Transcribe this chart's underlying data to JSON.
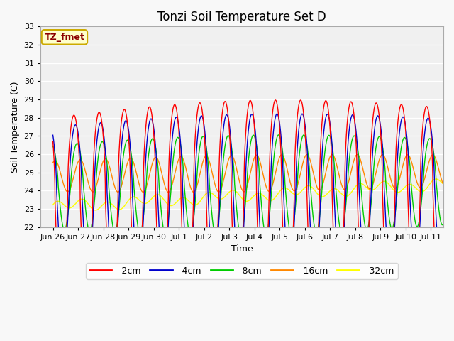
{
  "title": "Tonzi Soil Temperature Set D",
  "xlabel": "Time",
  "ylabel": "Soil Temperature (C)",
  "ylim": [
    22.0,
    33.0
  ],
  "yticks": [
    22.0,
    23.0,
    24.0,
    25.0,
    26.0,
    27.0,
    28.0,
    29.0,
    30.0,
    31.0,
    32.0,
    33.0
  ],
  "annotation": "TZ_fmet",
  "bg_color": "#e8e8e8",
  "plot_bg_color": "#f0f0f0",
  "line_colors": {
    "-2cm": "#ff0000",
    "-4cm": "#0000cc",
    "-8cm": "#00cc00",
    "-16cm": "#ff8800",
    "-32cm": "#ffff00"
  },
  "legend_labels": [
    "-2cm",
    "-4cm",
    "-8cm",
    "-16cm",
    "-32cm"
  ],
  "xtick_labels": [
    "Jun 26",
    "Jun 27",
    "Jun 28",
    "Jun 29",
    "Jun 30",
    "Jul 1",
    "Jul 2",
    "Jul 3",
    "Jul 4",
    "Jul 5",
    "Jul 6",
    "Jul 7",
    "Jul 8",
    "Jul 9",
    "Jul 10",
    "Jul 11"
  ],
  "title_fontsize": 12,
  "label_fontsize": 9,
  "tick_fontsize": 8
}
